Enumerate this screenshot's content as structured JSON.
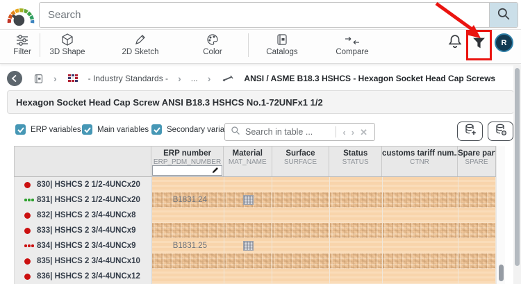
{
  "topbar": {
    "search_placeholder": "Search"
  },
  "toolbar": {
    "items": [
      {
        "label": "Filter"
      },
      {
        "label": "3D Shape"
      },
      {
        "label": "2D Sketch"
      },
      {
        "label": "Color"
      },
      {
        "label": "Catalogs"
      },
      {
        "label": "Compare"
      }
    ]
  },
  "user": {
    "initial": "R"
  },
  "breadcrumb": {
    "industry_standards": "- Industry Standards -",
    "ellipsis": "...",
    "current": "ANSI / ASME B18.3 HSHCS - Hexagon Socket Head Cap Screws"
  },
  "page": {
    "title": "Hexagon Socket Head Cap Screw ANSI B18.3 HSHCS No.1-72UNFx1 1/2"
  },
  "controls": {
    "checkboxes": [
      {
        "label": "ERP variables",
        "checked": true
      },
      {
        "label": "Main variables",
        "checked": true
      },
      {
        "label": "Secondary variables",
        "checked": true
      }
    ],
    "table_search_placeholder": "Search in table ...",
    "nav_prev": "‹",
    "nav_next": "›",
    "nav_clear": "✕"
  },
  "table": {
    "columns": [
      {
        "label": "ERP number",
        "code": "ERP_PDM_NUMBER"
      },
      {
        "label": "Material",
        "code": "MAT_NAME"
      },
      {
        "label": "Surface",
        "code": "SURFACE"
      },
      {
        "label": "Status",
        "code": "STATUS"
      },
      {
        "label": "customs tariff num...",
        "code": "CTNR"
      },
      {
        "label": "Spare part",
        "code": "SPARE"
      }
    ],
    "rows": [
      {
        "name": "830| HSHCS 2 1/2-4UNCx20",
        "marker": "dot-red",
        "erp": "",
        "material_icon": false,
        "censored": false
      },
      {
        "name": "831| HSHCS 2 1/2-4UNCx20",
        "marker": "dots-green",
        "erp": "B1831.24",
        "material_icon": true,
        "censored": true
      },
      {
        "name": "832| HSHCS 2 3/4-4UNCx8",
        "marker": "dot-red",
        "erp": "",
        "material_icon": false,
        "censored": false
      },
      {
        "name": "833| HSHCS 2 3/4-4UNCx9",
        "marker": "dot-red",
        "erp": "",
        "material_icon": false,
        "censored": true
      },
      {
        "name": "834| HSHCS 2 3/4-4UNCx9",
        "marker": "dots-red",
        "erp": "B1831.25",
        "material_icon": true,
        "censored": false
      },
      {
        "name": "835| HSHCS 2 3/4-4UNCx10",
        "marker": "dot-red",
        "erp": "",
        "material_icon": false,
        "censored": true
      },
      {
        "name": "836| HSHCS 2 3/4-4UNCx12",
        "marker": "dot-red",
        "erp": "",
        "material_icon": false,
        "censored": false
      }
    ]
  },
  "colors": {
    "annotation_red": "#ea1410",
    "checkbox_blue": "#4697b5",
    "status_dot_red": "#cb1010",
    "status_dots_green": "#2ba02b",
    "cell_peach": "#f8d4ab",
    "search_button_bg": "#cbdfe9",
    "avatar_ring": "#2f7ea6"
  }
}
